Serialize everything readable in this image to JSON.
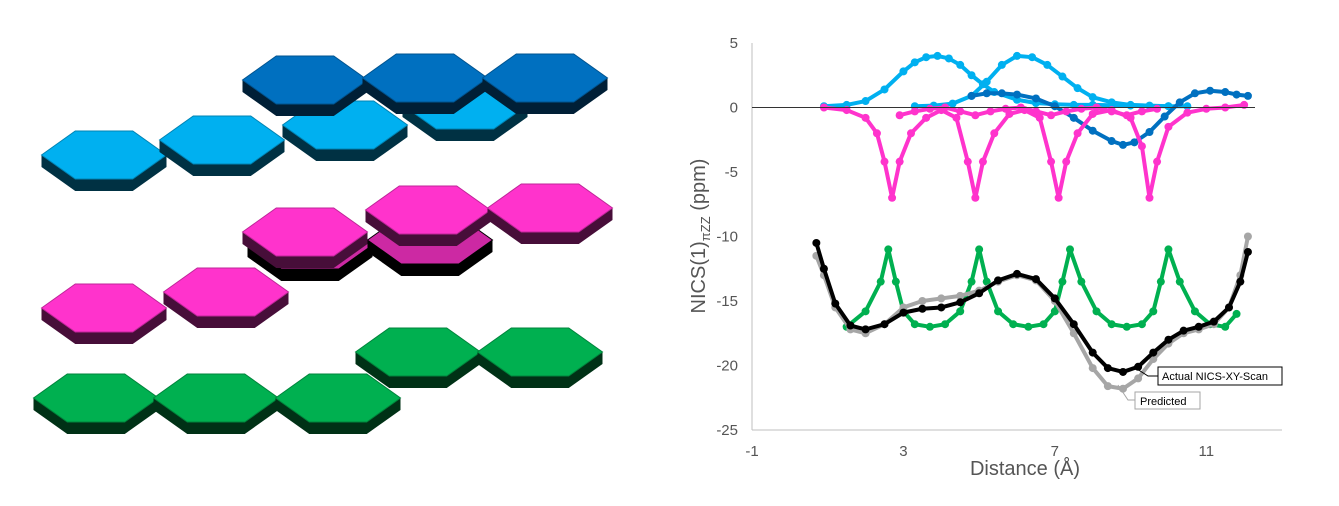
{
  "figure": {
    "stack_colors": {
      "blue_bottom": "#00b0f0",
      "blue_top": "#0070c0",
      "magenta": "#ff33cc",
      "green": "#00b050"
    }
  },
  "chart_data": {
    "type": "scatter",
    "xlabel": "Distance (Å)",
    "ylabel_main": "NICS(1)",
    "ylabel_sub": "πZZ",
    "ylabel_unit": " (ppm)",
    "xlim": [
      -1,
      13
    ],
    "ylim": [
      -25,
      5
    ],
    "xticks": [
      -1,
      3,
      7,
      11
    ],
    "yticks": [
      5,
      0,
      -5,
      -10,
      -15,
      -20,
      -25
    ],
    "zero_line": true,
    "grid": false,
    "series": [
      {
        "key": "light_blue",
        "color": "#00b0f0",
        "x": [
          0.9,
          1.5,
          2.0,
          2.5,
          3.0,
          3.3,
          3.6,
          3.9,
          4.2,
          4.5,
          4.8,
          5.1,
          5.4,
          6.0,
          6.5,
          7.0,
          7.5,
          8.0,
          9.0,
          10.0
        ],
        "y": [
          0.1,
          0.2,
          0.5,
          1.4,
          2.8,
          3.5,
          3.9,
          4.0,
          3.8,
          3.3,
          2.5,
          1.8,
          1.2,
          0.6,
          0.35,
          0.25,
          0.2,
          0.2,
          0.15,
          0.1
        ]
      },
      {
        "key": "light_blue_2",
        "color": "#00b0f0",
        "x": [
          3.3,
          3.8,
          4.3,
          4.8,
          5.2,
          5.6,
          6.0,
          6.4,
          6.8,
          7.2,
          7.6,
          8.0,
          8.5,
          9.0,
          9.5,
          10.0,
          10.5
        ],
        "y": [
          0.1,
          0.15,
          0.3,
          0.9,
          2.0,
          3.3,
          4.0,
          3.9,
          3.3,
          2.4,
          1.5,
          0.8,
          0.4,
          0.2,
          0.15,
          0.1,
          0.1
        ]
      },
      {
        "key": "dark_blue",
        "color": "#0070c0",
        "x": [
          4.8,
          5.2,
          5.6,
          6.0,
          6.5,
          7.0,
          7.5,
          8.0,
          8.5,
          8.8,
          9.1,
          9.5,
          9.9,
          10.3,
          10.7,
          11.1,
          11.5,
          11.8,
          12.1
        ],
        "y": [
          0.9,
          1.1,
          1.1,
          1.0,
          0.7,
          0.1,
          -0.8,
          -1.8,
          -2.6,
          -2.9,
          -2.7,
          -1.9,
          -0.7,
          0.4,
          1.1,
          1.3,
          1.2,
          1.0,
          0.9
        ]
      },
      {
        "key": "magenta",
        "color": "#ff33cc",
        "x": [
          0.9,
          1.5,
          2.0,
          2.3,
          2.5,
          2.7,
          2.9,
          3.2,
          3.6,
          4.0,
          4.4,
          4.7,
          4.9,
          5.1,
          5.4,
          5.8,
          6.2,
          6.6,
          6.9,
          7.1,
          7.3,
          7.6,
          8.0,
          8.5,
          9.0,
          9.3,
          9.5,
          9.7,
          10.0,
          10.5,
          11.0,
          11.5,
          12.0
        ],
        "y": [
          0.0,
          -0.2,
          -0.8,
          -2.0,
          -4.2,
          -7.0,
          -4.2,
          -2.0,
          -0.8,
          -0.2,
          -0.8,
          -4.2,
          -7.0,
          -4.2,
          -2.0,
          -0.5,
          -0.2,
          -0.8,
          -4.2,
          -7.0,
          -4.2,
          -2.0,
          -0.5,
          -0.2,
          -0.8,
          -3.0,
          -7.0,
          -4.2,
          -1.5,
          -0.4,
          -0.1,
          0.0,
          0.2
        ]
      },
      {
        "key": "magenta_2",
        "color": "#ff33cc",
        "x": [
          2.9,
          3.3,
          3.7,
          4.1,
          4.5,
          4.9,
          5.3,
          5.7,
          6.1,
          6.5,
          6.9,
          7.3,
          7.7,
          8.1,
          8.5,
          8.9,
          9.3,
          9.7
        ],
        "y": [
          -0.6,
          -0.3,
          -0.1,
          0.0,
          -0.3,
          -0.6,
          -0.3,
          -0.1,
          0.0,
          -0.3,
          -0.6,
          -0.3,
          -0.1,
          0.0,
          -0.3,
          -0.6,
          -0.3,
          -0.1
        ]
      },
      {
        "key": "green",
        "color": "#00b050",
        "x": [
          1.5,
          2.0,
          2.4,
          2.6,
          2.8,
          3.0,
          3.3,
          3.7,
          4.1,
          4.5,
          4.8,
          5.0,
          5.2,
          5.5,
          5.9,
          6.3,
          6.7,
          7.0,
          7.2,
          7.4,
          7.7,
          8.1,
          8.5,
          8.9,
          9.3,
          9.6,
          9.8,
          10.0,
          10.3,
          10.7,
          11.1,
          11.5,
          11.8
        ],
        "y": [
          -17.0,
          -15.8,
          -13.5,
          -11.0,
          -13.5,
          -15.8,
          -16.8,
          -17.0,
          -16.8,
          -15.8,
          -13.5,
          -11.0,
          -13.5,
          -15.8,
          -16.8,
          -17.0,
          -16.8,
          -15.8,
          -13.5,
          -11.0,
          -13.5,
          -15.8,
          -16.8,
          -17.0,
          -16.8,
          -15.8,
          -13.5,
          -11.0,
          -13.5,
          -15.8,
          -16.8,
          -17.0,
          -16.0
        ]
      },
      {
        "key": "predicted",
        "name": "Predicted",
        "color": "#a6a6a6",
        "x": [
          0.7,
          0.9,
          1.2,
          1.6,
          2.0,
          2.5,
          3.0,
          3.5,
          4.0,
          4.5,
          5.0,
          5.5,
          6.0,
          6.5,
          7.0,
          7.5,
          8.0,
          8.4,
          8.8,
          9.2,
          9.6,
          10.0,
          10.4,
          10.8,
          11.2,
          11.6,
          11.9,
          12.1
        ],
        "y": [
          -11.5,
          -13.0,
          -15.5,
          -17.2,
          -17.5,
          -16.8,
          -15.5,
          -15.0,
          -14.8,
          -14.6,
          -14.2,
          -13.5,
          -13.0,
          -13.4,
          -15.0,
          -17.5,
          -20.2,
          -21.6,
          -21.8,
          -21.0,
          -19.5,
          -18.3,
          -17.5,
          -17.2,
          -16.8,
          -15.5,
          -13.0,
          -10.0
        ]
      },
      {
        "key": "actual",
        "name": "Actual NICS-XY-Scan",
        "color": "#000000",
        "x": [
          0.7,
          0.9,
          1.2,
          1.6,
          2.0,
          2.5,
          3.0,
          3.5,
          4.0,
          4.5,
          5.0,
          5.5,
          6.0,
          6.5,
          7.0,
          7.5,
          8.0,
          8.4,
          8.8,
          9.2,
          9.6,
          10.0,
          10.4,
          10.8,
          11.2,
          11.6,
          11.9,
          12.1
        ],
        "y": [
          -10.5,
          -12.5,
          -15.2,
          -16.9,
          -17.2,
          -16.8,
          -15.9,
          -15.6,
          -15.5,
          -15.1,
          -14.4,
          -13.4,
          -12.9,
          -13.3,
          -14.8,
          -16.8,
          -19.0,
          -20.2,
          -20.5,
          -20.1,
          -19.0,
          -18.0,
          -17.3,
          -17.0,
          -16.6,
          -15.5,
          -13.5,
          -11.2
        ]
      }
    ],
    "annotations": [
      {
        "text": "Actual NICS-XY-Scan",
        "target_series": "actual"
      },
      {
        "text": "Predicted",
        "target_series": "predicted"
      }
    ]
  }
}
